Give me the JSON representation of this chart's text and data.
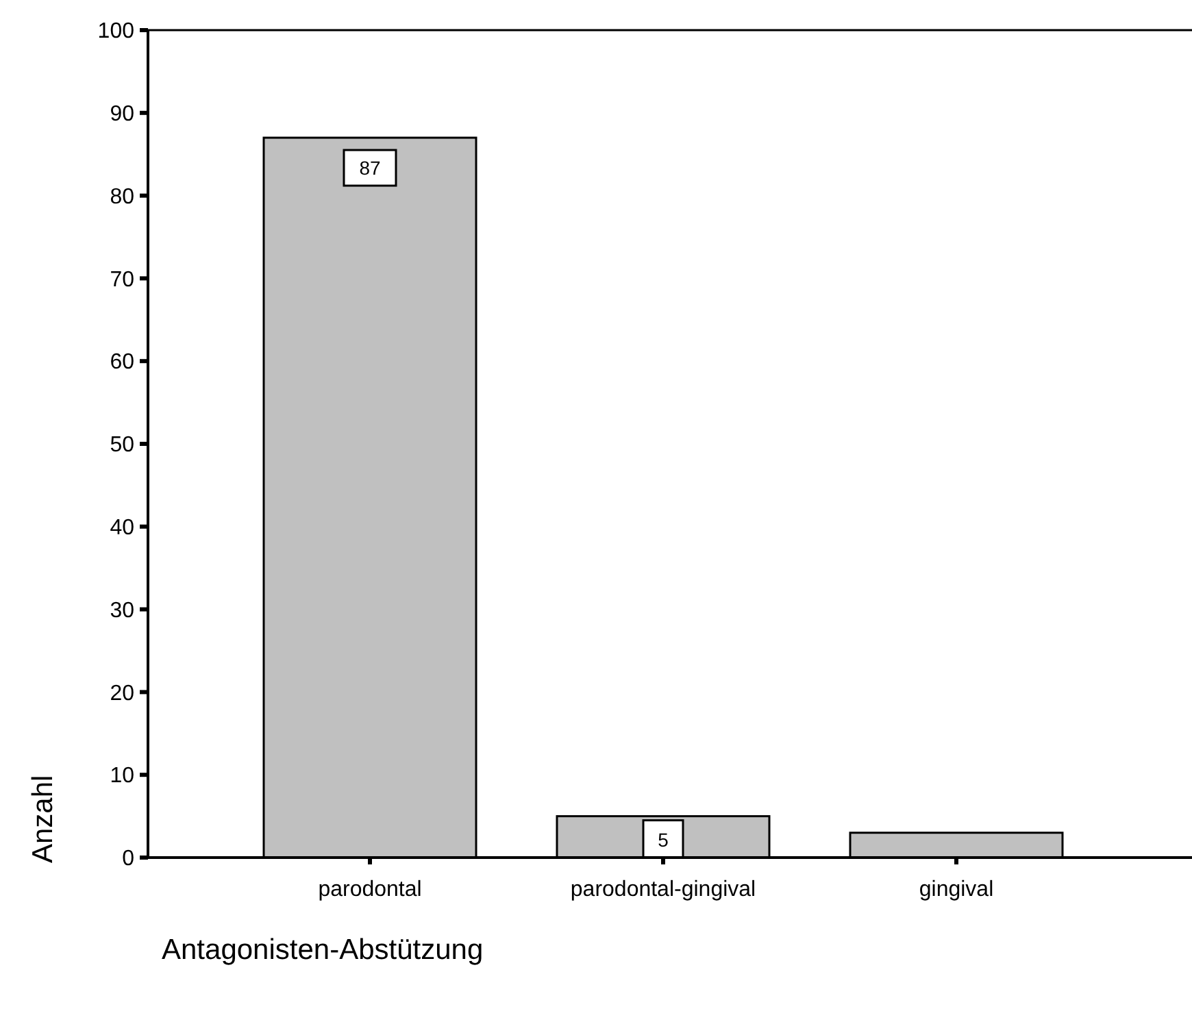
{
  "chart_data": {
    "type": "bar",
    "xlabel": "Antagonisten-Abstützung",
    "ylabel": "Anzahl",
    "categories": [
      "parodontal",
      "parodontal-gingival",
      "gingival"
    ],
    "values": [
      87,
      5,
      3
    ],
    "color": "#c0c0c0",
    "value_labels": [
      "87",
      "5",
      null
    ],
    "ylim": [
      0,
      100
    ],
    "yticks": [
      0,
      10,
      20,
      30,
      40,
      50,
      60,
      70,
      80,
      90,
      100
    ],
    "grid": false
  }
}
